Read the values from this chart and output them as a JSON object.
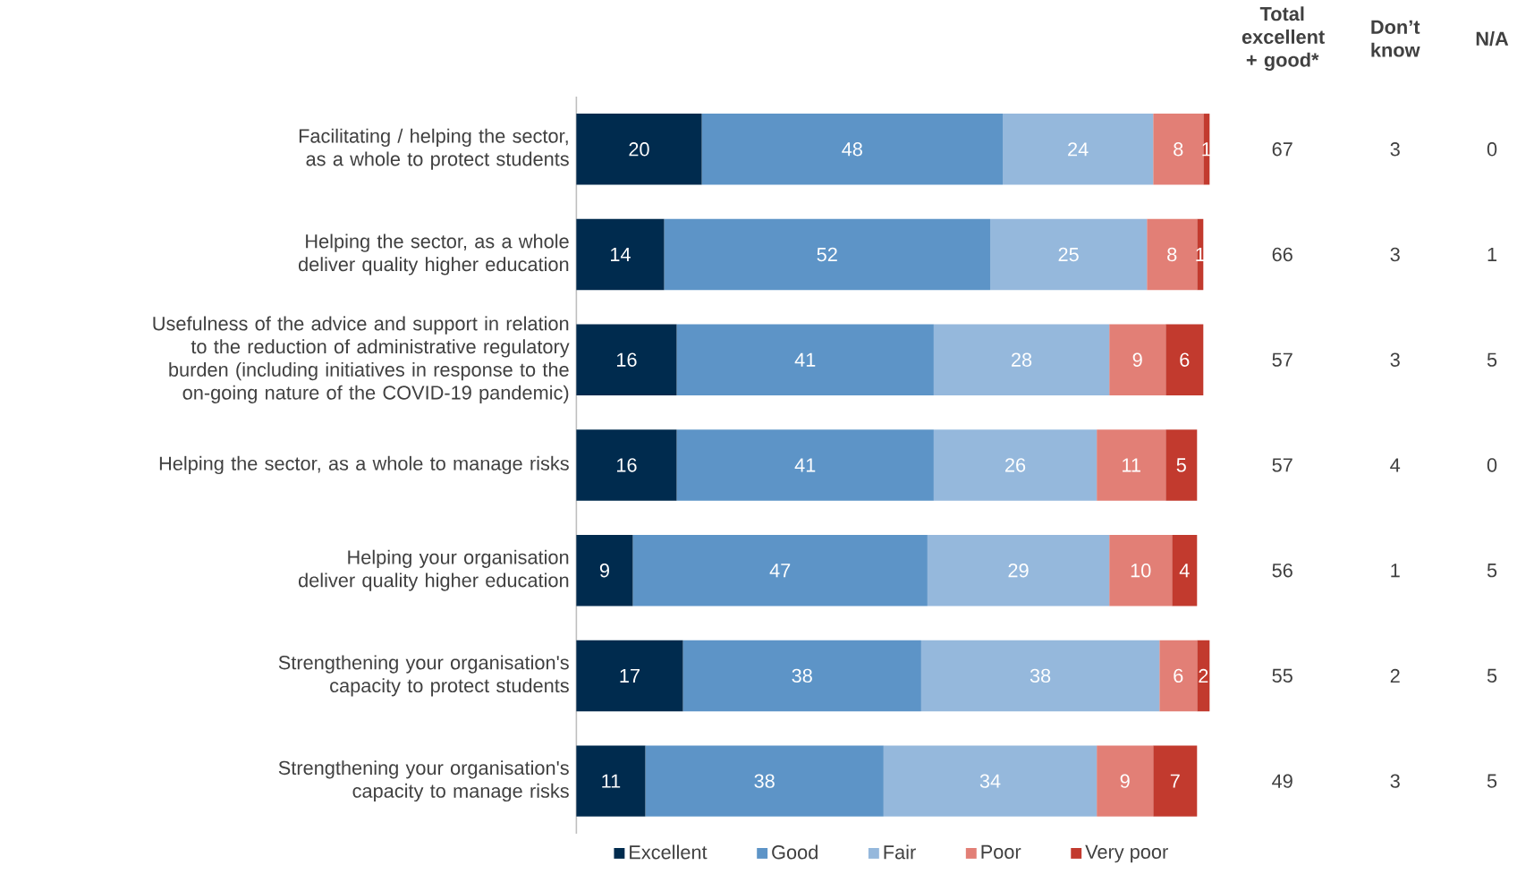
{
  "chart_data": {
    "type": "bar",
    "orientation": "horizontal",
    "stacked": true,
    "data_labels": true,
    "legend": "bottom",
    "categories": [
      "Facilitating / helping the sector, as a whole to protect students",
      "Helping the sector, as a whole deliver quality higher education",
      "Usefulness of the advice and support in relation to the reduction of administrative regulatory burden (including initiatives in response to the on-going nature of the COVID-19 pandemic)",
      "Helping the sector, as a whole to manage risks",
      "Helping your organisation deliver quality higher education",
      "Strengthening your organisation's capacity to protect students",
      "Strengthening your organisation's capacity to manage risks"
    ],
    "series": [
      {
        "name": "Excellent",
        "color": "#002b4e",
        "values": [
          20,
          14,
          16,
          16,
          9,
          17,
          11
        ]
      },
      {
        "name": "Good",
        "color": "#5d94c7",
        "values": [
          48,
          52,
          41,
          41,
          47,
          38,
          38
        ]
      },
      {
        "name": "Fair",
        "color": "#95b8dc",
        "values": [
          24,
          25,
          28,
          26,
          29,
          38,
          34
        ]
      },
      {
        "name": "Poor",
        "color": "#e27f76",
        "values": [
          8,
          8,
          9,
          11,
          10,
          6,
          9
        ]
      },
      {
        "name": "Very poor",
        "color": "#c23a2e",
        "values": [
          1,
          1,
          6,
          5,
          4,
          2,
          7
        ]
      }
    ],
    "annotations": [
      "Total excellent + good*",
      "Don’t know",
      "N/A",
      "67",
      "3",
      "0",
      "66",
      "3",
      "1",
      "57",
      "3",
      "5",
      "57",
      "4",
      "0",
      "56",
      "1",
      "5",
      "55",
      "2",
      "5",
      "49",
      "3",
      "5"
    ]
  }
}
